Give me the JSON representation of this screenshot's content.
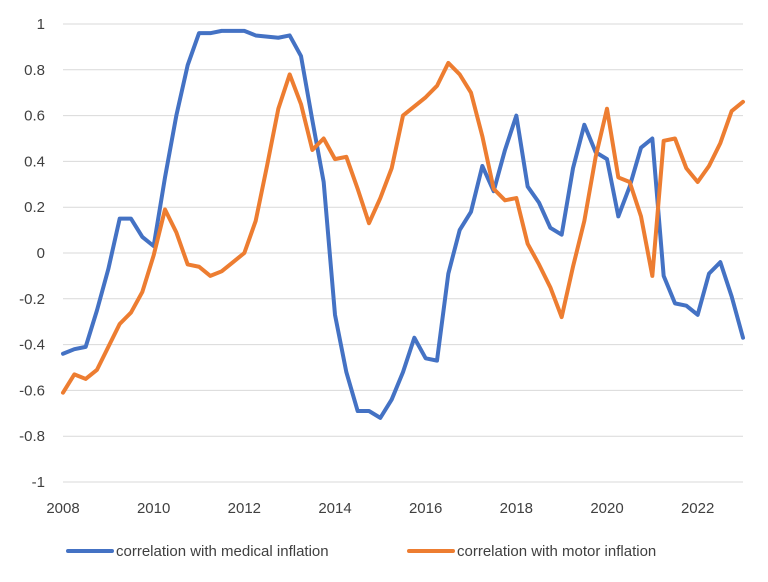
{
  "chart_data": {
    "type": "line",
    "title": "",
    "xlabel": "",
    "ylabel": "",
    "xlim": [
      2008,
      2023
    ],
    "ylim": [
      -1,
      1
    ],
    "grid": true,
    "legend_position": "bottom",
    "x_ticks": [
      "2008",
      "2010",
      "2012",
      "2014",
      "2016",
      "2018",
      "2020",
      "2022"
    ],
    "x_tick_values": [
      2008,
      2010,
      2012,
      2014,
      2016,
      2018,
      2020,
      2022
    ],
    "y_ticks": [
      "1",
      "0.8",
      "0.6",
      "0.4",
      "0.2",
      "0",
      "-0.2",
      "-0.4",
      "-0.6",
      "-0.8",
      "-1"
    ],
    "y_tick_values": [
      1,
      0.8,
      0.6,
      0.4,
      0.2,
      0,
      -0.2,
      -0.4,
      -0.6,
      -0.8,
      -1
    ],
    "series": [
      {
        "name": "correlation with medical inflation",
        "color": "#4472C4",
        "x": [
          2008.0,
          2008.25,
          2008.5,
          2008.75,
          2009.0,
          2009.25,
          2009.5,
          2009.75,
          2010.0,
          2010.25,
          2010.5,
          2010.75,
          2011.0,
          2011.25,
          2011.5,
          2011.75,
          2012.0,
          2012.25,
          2012.5,
          2012.75,
          2013.0,
          2013.25,
          2013.5,
          2013.75,
          2014.0,
          2014.25,
          2014.5,
          2014.75,
          2015.0,
          2015.25,
          2015.5,
          2015.75,
          2016.0,
          2016.25,
          2016.5,
          2016.75,
          2017.0,
          2017.25,
          2017.5,
          2017.75,
          2018.0,
          2018.25,
          2018.5,
          2018.75,
          2019.0,
          2019.25,
          2019.5,
          2019.75,
          2020.0,
          2020.25,
          2020.5,
          2020.75,
          2021.0,
          2021.25,
          2021.5,
          2021.75,
          2022.0,
          2022.25,
          2022.5,
          2022.75,
          2023.0
        ],
        "values": [
          -0.44,
          -0.42,
          -0.41,
          -0.25,
          -0.07,
          0.15,
          0.15,
          0.07,
          0.03,
          0.33,
          0.6,
          0.82,
          0.96,
          0.96,
          0.97,
          0.97,
          0.97,
          0.95,
          0.945,
          0.94,
          0.95,
          0.86,
          0.58,
          0.31,
          -0.27,
          -0.52,
          -0.69,
          -0.69,
          -0.72,
          -0.64,
          -0.52,
          -0.37,
          -0.46,
          -0.47,
          -0.09,
          0.1,
          0.18,
          0.38,
          0.27,
          0.45,
          0.6,
          0.29,
          0.22,
          0.11,
          0.08,
          0.37,
          0.56,
          0.44,
          0.41,
          0.16,
          0.29,
          0.46,
          0.5,
          -0.1,
          -0.22,
          -0.23,
          -0.27,
          -0.09,
          -0.04,
          -0.19,
          -0.37
        ]
      },
      {
        "name": "correlation with motor inflation",
        "color": "#ED7D31",
        "x": [
          2008.0,
          2008.25,
          2008.5,
          2008.75,
          2009.0,
          2009.25,
          2009.5,
          2009.75,
          2010.0,
          2010.25,
          2010.5,
          2010.75,
          2011.0,
          2011.25,
          2011.5,
          2011.75,
          2012.0,
          2012.25,
          2012.5,
          2012.75,
          2013.0,
          2013.25,
          2013.5,
          2013.75,
          2014.0,
          2014.25,
          2014.5,
          2014.75,
          2015.0,
          2015.25,
          2015.5,
          2015.75,
          2016.0,
          2016.25,
          2016.5,
          2016.75,
          2017.0,
          2017.25,
          2017.5,
          2017.75,
          2018.0,
          2018.25,
          2018.5,
          2018.75,
          2019.0,
          2019.25,
          2019.5,
          2019.75,
          2020.0,
          2020.25,
          2020.5,
          2020.75,
          2021.0,
          2021.25,
          2021.5,
          2021.75,
          2022.0,
          2022.25,
          2022.5,
          2022.75,
          2023.0
        ],
        "values": [
          -0.61,
          -0.53,
          -0.55,
          -0.51,
          -0.41,
          -0.31,
          -0.26,
          -0.17,
          -0.01,
          0.19,
          0.09,
          -0.05,
          -0.06,
          -0.1,
          -0.08,
          -0.04,
          0.0,
          0.14,
          0.38,
          0.63,
          0.78,
          0.65,
          0.45,
          0.5,
          0.41,
          0.42,
          0.28,
          0.13,
          0.24,
          0.37,
          0.6,
          0.64,
          0.68,
          0.73,
          0.83,
          0.78,
          0.7,
          0.51,
          0.28,
          0.23,
          0.24,
          0.04,
          -0.05,
          -0.15,
          -0.28,
          -0.06,
          0.14,
          0.42,
          0.63,
          0.33,
          0.31,
          0.16,
          -0.1,
          0.49,
          0.5,
          0.37,
          0.31,
          0.38,
          0.48,
          0.62,
          0.66
        ]
      }
    ]
  }
}
